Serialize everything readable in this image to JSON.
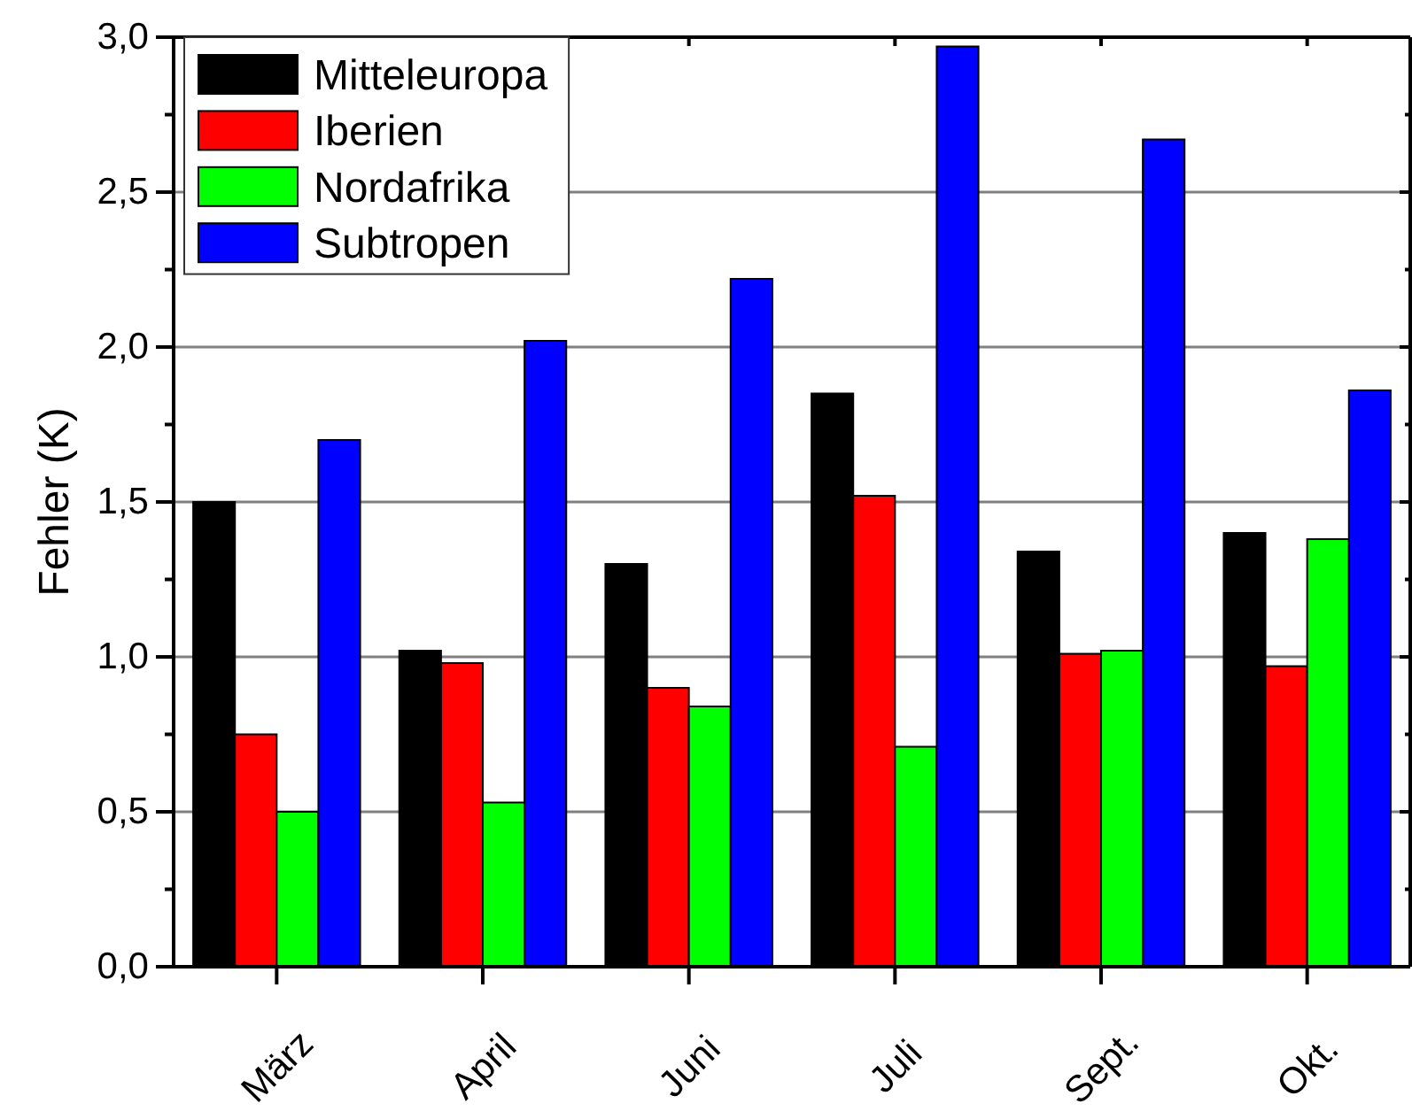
{
  "chart_data": {
    "type": "bar",
    "ylabel": "Fehler (K)",
    "categories": [
      "März",
      "April",
      "Juni",
      "Juli",
      "Sept.",
      "Okt."
    ],
    "series": [
      {
        "name": "Mitteleuropa",
        "color": "#000000",
        "values": [
          1.5,
          1.02,
          1.3,
          1.85,
          1.34,
          1.4
        ]
      },
      {
        "name": "Iberien",
        "color": "#ff0000",
        "values": [
          0.75,
          0.98,
          0.9,
          1.52,
          1.01,
          0.97
        ]
      },
      {
        "name": "Nordafrika",
        "color": "#00ff00",
        "values": [
          0.5,
          0.53,
          0.84,
          0.71,
          1.02,
          1.38
        ]
      },
      {
        "name": "Subtropen",
        "color": "#0000ff",
        "values": [
          1.7,
          2.02,
          2.22,
          2.97,
          2.67,
          1.86
        ]
      }
    ],
    "ylim": [
      0,
      3
    ],
    "yticks": [
      {
        "value": 0,
        "label": "0,0"
      },
      {
        "value": 0.25,
        "label": null
      },
      {
        "value": 0.5,
        "label": "0,5"
      },
      {
        "value": 0.75,
        "label": null
      },
      {
        "value": 1,
        "label": "1,0"
      },
      {
        "value": 1.25,
        "label": null
      },
      {
        "value": 1.5,
        "label": "1,5"
      },
      {
        "value": 1.75,
        "label": null
      },
      {
        "value": 2,
        "label": "2,0"
      },
      {
        "value": 2.25,
        "label": null
      },
      {
        "value": 2.5,
        "label": "2,5"
      },
      {
        "value": 2.75,
        "label": null
      },
      {
        "value": 3,
        "label": "3,0"
      }
    ],
    "grid": "y",
    "legend": "top left"
  }
}
